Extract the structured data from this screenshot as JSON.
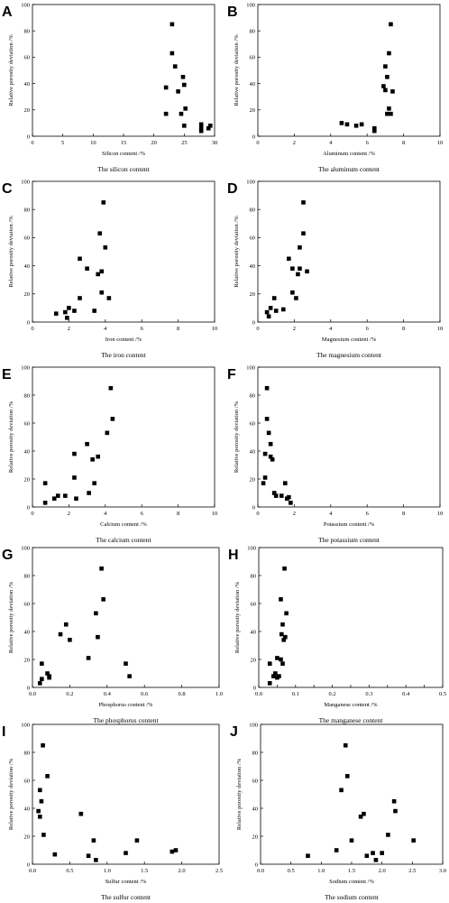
{
  "chart_data": [
    {
      "letter": "A",
      "type": "scatter",
      "title": "The silicon content",
      "xlabel": "Silicon content /%",
      "ylabel": "Relative porosity deviation /%",
      "xlim": [
        0,
        30
      ],
      "ylim": [
        0,
        100
      ],
      "xticks": [
        0,
        5,
        10,
        15,
        20,
        25,
        30
      ],
      "xtick_labels": [
        "0",
        "5",
        "10",
        "15",
        "20",
        "25",
        "30"
      ],
      "yticks": [
        0,
        20,
        40,
        60,
        80,
        100
      ],
      "ytick_labels": [
        "0",
        "20",
        "40",
        "60",
        "80",
        "100"
      ],
      "points": [
        [
          22,
          37
        ],
        [
          22,
          17
        ],
        [
          23,
          63
        ],
        [
          23,
          85
        ],
        [
          23.5,
          53
        ],
        [
          24,
          34
        ],
        [
          24.5,
          17
        ],
        [
          24.8,
          45
        ],
        [
          25,
          8
        ],
        [
          25,
          39
        ],
        [
          25.2,
          21
        ],
        [
          27.8,
          9
        ],
        [
          27.8,
          4
        ],
        [
          27.8,
          6
        ],
        [
          29,
          6
        ],
        [
          29.3,
          8
        ]
      ]
    },
    {
      "letter": "B",
      "type": "scatter",
      "title": "The aluminum content",
      "xlabel": "Aluminum content /%",
      "ylabel": "Relative porosity deviation /%",
      "xlim": [
        0,
        10
      ],
      "ylim": [
        0,
        100
      ],
      "xticks": [
        0,
        2,
        4,
        6,
        8,
        10
      ],
      "xtick_labels": [
        "0",
        "2",
        "4",
        "6",
        "8",
        "10"
      ],
      "yticks": [
        0,
        20,
        40,
        60,
        80,
        100
      ],
      "ytick_labels": [
        "0",
        "20",
        "40",
        "60",
        "80",
        "100"
      ],
      "points": [
        [
          4.6,
          10
        ],
        [
          4.9,
          9
        ],
        [
          5.4,
          8
        ],
        [
          5.7,
          9
        ],
        [
          6.4,
          4
        ],
        [
          6.4,
          6
        ],
        [
          6.9,
          38
        ],
        [
          7.0,
          53
        ],
        [
          7.0,
          35
        ],
        [
          7.1,
          45
        ],
        [
          7.1,
          17
        ],
        [
          7.2,
          63
        ],
        [
          7.2,
          21
        ],
        [
          7.3,
          85
        ],
        [
          7.3,
          17
        ],
        [
          7.4,
          34
        ]
      ]
    },
    {
      "letter": "C",
      "type": "scatter",
      "title": "The iron content",
      "xlabel": "Iron content /%",
      "ylabel": "Relative porosity deviation /%",
      "xlim": [
        0,
        10
      ],
      "ylim": [
        0,
        100
      ],
      "xticks": [
        0,
        2,
        4,
        6,
        8,
        10
      ],
      "xtick_labels": [
        "0",
        "2",
        "4",
        "6",
        "8",
        "10"
      ],
      "yticks": [
        0,
        20,
        40,
        60,
        80,
        100
      ],
      "ytick_labels": [
        "0",
        "20",
        "40",
        "60",
        "80",
        "100"
      ],
      "points": [
        [
          1.3,
          6
        ],
        [
          1.8,
          7
        ],
        [
          1.9,
          3
        ],
        [
          2.0,
          10
        ],
        [
          2.3,
          8
        ],
        [
          2.6,
          17
        ],
        [
          2.6,
          45
        ],
        [
          3.0,
          38
        ],
        [
          3.4,
          8
        ],
        [
          3.6,
          34
        ],
        [
          3.7,
          63
        ],
        [
          3.8,
          36
        ],
        [
          3.9,
          85
        ],
        [
          4.0,
          53
        ],
        [
          4.2,
          17
        ],
        [
          3.8,
          21
        ]
      ]
    },
    {
      "letter": "D",
      "type": "scatter",
      "title": "The magnesium content",
      "xlabel": "Magnesium content /%",
      "ylabel": "Relative porosity deviation /%",
      "xlim": [
        0,
        10
      ],
      "ylim": [
        0,
        100
      ],
      "xticks": [
        0,
        2,
        4,
        6,
        8,
        10
      ],
      "xtick_labels": [
        "0",
        "2",
        "4",
        "6",
        "8",
        "10"
      ],
      "yticks": [
        0,
        20,
        40,
        60,
        80,
        100
      ],
      "ytick_labels": [
        "0",
        "20",
        "40",
        "60",
        "80",
        "100"
      ],
      "points": [
        [
          0.5,
          7
        ],
        [
          0.6,
          4
        ],
        [
          0.7,
          10
        ],
        [
          0.9,
          17
        ],
        [
          1.0,
          8
        ],
        [
          1.4,
          9
        ],
        [
          1.7,
          45
        ],
        [
          1.9,
          38
        ],
        [
          1.9,
          21
        ],
        [
          2.1,
          17
        ],
        [
          2.2,
          34
        ],
        [
          2.3,
          53
        ],
        [
          2.5,
          63
        ],
        [
          2.5,
          85
        ],
        [
          2.7,
          36
        ],
        [
          2.3,
          38
        ]
      ]
    },
    {
      "letter": "E",
      "type": "scatter",
      "title": "The calcium content",
      "xlabel": "Calcium content /%",
      "ylabel": "Relative porosity deviation /%",
      "xlim": [
        0,
        10
      ],
      "ylim": [
        0,
        100
      ],
      "xticks": [
        0,
        2,
        4,
        6,
        8,
        10
      ],
      "xtick_labels": [
        "0",
        "2",
        "4",
        "6",
        "8",
        "10"
      ],
      "yticks": [
        0,
        20,
        40,
        60,
        80,
        100
      ],
      "ytick_labels": [
        "0",
        "20",
        "40",
        "60",
        "80",
        "100"
      ],
      "points": [
        [
          0.7,
          17
        ],
        [
          0.7,
          3
        ],
        [
          1.2,
          6
        ],
        [
          1.4,
          8
        ],
        [
          1.8,
          8
        ],
        [
          2.3,
          38
        ],
        [
          2.3,
          21
        ],
        [
          2.4,
          6
        ],
        [
          3.0,
          45
        ],
        [
          3.1,
          10
        ],
        [
          3.3,
          34
        ],
        [
          3.4,
          17
        ],
        [
          3.6,
          36
        ],
        [
          4.1,
          53
        ],
        [
          4.3,
          85
        ],
        [
          4.4,
          63
        ]
      ]
    },
    {
      "letter": "F",
      "type": "scatter",
      "title": "The potassium content",
      "xlabel": "Potassium content /%",
      "ylabel": "Relative porosity deviation /%",
      "xlim": [
        0,
        10
      ],
      "ylim": [
        0,
        100
      ],
      "xticks": [
        0,
        2,
        4,
        6,
        8,
        10
      ],
      "xtick_labels": [
        "0",
        "2",
        "4",
        "6",
        "8",
        "10"
      ],
      "yticks": [
        0,
        20,
        40,
        60,
        80,
        100
      ],
      "ytick_labels": [
        "0",
        "20",
        "40",
        "60",
        "80",
        "100"
      ],
      "points": [
        [
          0.3,
          17
        ],
        [
          0.4,
          38
        ],
        [
          0.4,
          21
        ],
        [
          0.5,
          85
        ],
        [
          0.5,
          63
        ],
        [
          0.6,
          53
        ],
        [
          0.7,
          45
        ],
        [
          0.7,
          36
        ],
        [
          0.8,
          34
        ],
        [
          0.9,
          10
        ],
        [
          1.0,
          8
        ],
        [
          1.3,
          8
        ],
        [
          1.5,
          17
        ],
        [
          1.6,
          6
        ],
        [
          1.7,
          7
        ],
        [
          1.8,
          3
        ]
      ]
    },
    {
      "letter": "G",
      "type": "scatter",
      "title": "The phosphorus content",
      "xlabel": "Phosphorus content /%",
      "ylabel": "Relative porosity deviation /%",
      "xlim": [
        0,
        1.0
      ],
      "ylim": [
        0,
        100
      ],
      "xticks": [
        0,
        0.2,
        0.4,
        0.6,
        0.8,
        1.0
      ],
      "xtick_labels": [
        "0.0",
        "0.2",
        "0.4",
        "0.6",
        "0.8",
        "1.0"
      ],
      "yticks": [
        0,
        20,
        40,
        60,
        80,
        100
      ],
      "ytick_labels": [
        "0",
        "20",
        "40",
        "60",
        "80",
        "100"
      ],
      "points": [
        [
          0.04,
          3
        ],
        [
          0.05,
          6
        ],
        [
          0.05,
          17
        ],
        [
          0.08,
          10
        ],
        [
          0.09,
          7
        ],
        [
          0.15,
          38
        ],
        [
          0.18,
          45
        ],
        [
          0.2,
          34
        ],
        [
          0.3,
          21
        ],
        [
          0.34,
          53
        ],
        [
          0.35,
          36
        ],
        [
          0.37,
          85
        ],
        [
          0.38,
          63
        ],
        [
          0.5,
          17
        ],
        [
          0.52,
          8
        ],
        [
          0.09,
          8
        ]
      ]
    },
    {
      "letter": "H",
      "type": "scatter",
      "title": "The manganese content",
      "xlabel": "Manganese content /%",
      "ylabel": "Relative porosity deviation /%",
      "xlim": [
        0,
        0.5
      ],
      "ylim": [
        0,
        100
      ],
      "xticks": [
        0,
        0.05,
        0.1,
        0.15,
        0.2,
        0.25,
        0.3,
        0.35,
        0.4,
        0.45,
        0.5
      ],
      "xtick_labels": [
        "0.0",
        "",
        "0.1",
        "",
        "0.2",
        "",
        "0.3",
        "",
        "0.4",
        "",
        "0.5"
      ],
      "yticks": [
        0,
        20,
        40,
        60,
        80,
        100
      ],
      "ytick_labels": [
        "0",
        "20",
        "40",
        "60",
        "80",
        "100"
      ],
      "points": [
        [
          0.03,
          3
        ],
        [
          0.03,
          17
        ],
        [
          0.04,
          8
        ],
        [
          0.045,
          10
        ],
        [
          0.05,
          21
        ],
        [
          0.05,
          7
        ],
        [
          0.055,
          8
        ],
        [
          0.06,
          63
        ],
        [
          0.062,
          38
        ],
        [
          0.065,
          45
        ],
        [
          0.065,
          17
        ],
        [
          0.068,
          34
        ],
        [
          0.07,
          85
        ],
        [
          0.072,
          36
        ],
        [
          0.075,
          53
        ],
        [
          0.06,
          20
        ]
      ]
    },
    {
      "letter": "I",
      "type": "scatter",
      "title": "The sulfur content",
      "xlabel": "Sulfur content /%",
      "ylabel": "Relative porosity deviation /%",
      "xlim": [
        0,
        2.5
      ],
      "ylim": [
        0,
        100
      ],
      "xticks": [
        0,
        0.5,
        1.0,
        1.5,
        2.0,
        2.5
      ],
      "xtick_labels": [
        "0.0",
        "0.5",
        "1.0",
        "1.5",
        "2.0",
        "2.5"
      ],
      "yticks": [
        0,
        20,
        40,
        60,
        80,
        100
      ],
      "ytick_labels": [
        "0",
        "20",
        "40",
        "60",
        "80",
        "100"
      ],
      "points": [
        [
          0.08,
          38
        ],
        [
          0.1,
          53
        ],
        [
          0.1,
          34
        ],
        [
          0.12,
          45
        ],
        [
          0.14,
          85
        ],
        [
          0.15,
          21
        ],
        [
          0.2,
          63
        ],
        [
          0.3,
          7
        ],
        [
          0.65,
          36
        ],
        [
          0.75,
          6
        ],
        [
          0.82,
          17
        ],
        [
          0.85,
          3
        ],
        [
          1.25,
          8
        ],
        [
          1.4,
          17
        ],
        [
          1.87,
          9
        ],
        [
          1.92,
          10
        ]
      ]
    },
    {
      "letter": "J",
      "type": "scatter",
      "title": "The sodium content",
      "xlabel": "Sodium content /%",
      "ylabel": "Relative porosity deviation /%",
      "xlim": [
        0,
        3.0
      ],
      "ylim": [
        0,
        100
      ],
      "xticks": [
        0,
        0.5,
        1.0,
        1.5,
        2.0,
        2.5,
        3.0
      ],
      "xtick_labels": [
        "0.0",
        "0.5",
        "1.0",
        "1.5",
        "2.0",
        "2.5",
        "3.0"
      ],
      "yticks": [
        0,
        20,
        40,
        60,
        80,
        100
      ],
      "ytick_labels": [
        "0",
        "20",
        "40",
        "60",
        "80",
        "100"
      ],
      "points": [
        [
          0.78,
          6
        ],
        [
          1.25,
          10
        ],
        [
          1.33,
          53
        ],
        [
          1.4,
          85
        ],
        [
          1.43,
          63
        ],
        [
          1.5,
          17
        ],
        [
          1.65,
          34
        ],
        [
          1.7,
          36
        ],
        [
          1.75,
          6
        ],
        [
          1.85,
          8
        ],
        [
          1.9,
          3
        ],
        [
          2.0,
          8
        ],
        [
          2.1,
          21
        ],
        [
          2.2,
          45
        ],
        [
          2.22,
          38
        ],
        [
          2.52,
          17
        ]
      ]
    }
  ]
}
